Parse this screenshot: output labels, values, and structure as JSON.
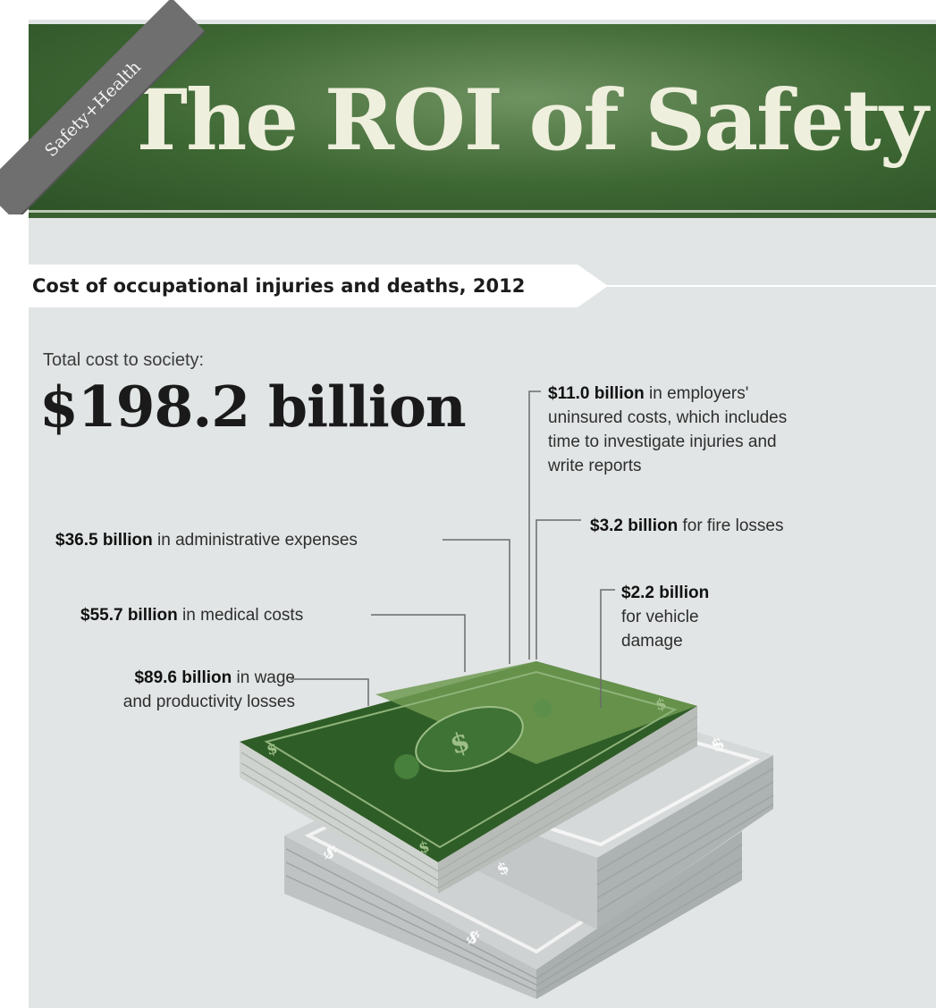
{
  "header": {
    "ribbon": "Safety+Health",
    "title": "The ROI of Safety"
  },
  "section_tab": "Cost of occupational injuries and deaths, 2012",
  "total": {
    "label": "Total cost to society:",
    "value": "$198.2 billion"
  },
  "colors": {
    "banner_green": "#3d6733",
    "bill_green": "#2f5d27",
    "background": "#e2e5e5"
  },
  "chart_data": {
    "type": "bar",
    "title": "Cost of occupational injuries and deaths, 2012",
    "total": 198.2,
    "unit": "billion",
    "components": [
      {
        "value": 89.6,
        "amount": "$89.6 billion",
        "text": " in wage",
        "text2": "and productivity losses"
      },
      {
        "value": 55.7,
        "amount": "$55.7 billion",
        "text": " in medical costs"
      },
      {
        "value": 36.5,
        "amount": "$36.5 billion",
        "text": " in administrative expenses"
      },
      {
        "value": 11.0,
        "amount": "$11.0 billion",
        "text": " in employers'",
        "text2": "uninsured costs, which includes",
        "text3": "time to investigate injuries and",
        "text4": "write reports"
      },
      {
        "value": 3.2,
        "amount": "$3.2 billion",
        "text": " for fire losses"
      },
      {
        "value": 2.2,
        "amount": "$2.2 billion",
        "text": "for vehicle",
        "text2": "damage"
      }
    ]
  }
}
